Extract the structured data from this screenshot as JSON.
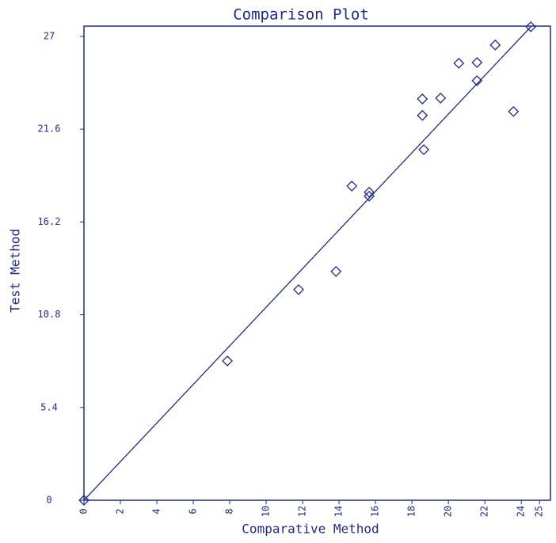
{
  "chart_data": {
    "type": "scatter",
    "title": "Comparison Plot",
    "x_label": "Comparative Method",
    "y_label": "Test Method",
    "color": "#1f2a8c",
    "x": [
      0,
      7.87,
      11.78,
      13.83,
      14.7,
      15.65,
      15.65,
      18.57,
      18.57,
      18.65,
      19.57,
      20.57,
      21.57,
      21.57,
      22.57,
      23.57,
      24.52
    ],
    "values": [
      0,
      8.11,
      12.26,
      13.32,
      18.29,
      17.93,
      17.7,
      23.36,
      22.4,
      20.41,
      23.41,
      25.44,
      25.48,
      24.42,
      26.5,
      22.63,
      27.56
    ],
    "line": {
      "x": [
        0,
        24.52
      ],
      "values": [
        0,
        27.56
      ]
    },
    "xlim": [
      0,
      25.6
    ],
    "ylim": [
      0,
      27.6
    ],
    "xticks": [
      0,
      2,
      4,
      6,
      8,
      10,
      12,
      14,
      16,
      18,
      20,
      22,
      24,
      25
    ],
    "yticks": [
      0,
      5.4,
      10.8,
      16.2,
      21.6,
      27
    ]
  }
}
